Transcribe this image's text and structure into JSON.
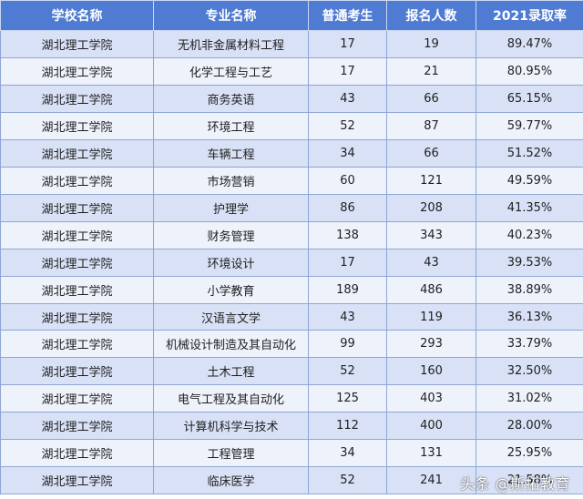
{
  "table": {
    "headers": [
      "学校名称",
      "专业名称",
      "普通考生",
      "报名人数",
      "2021录取率"
    ],
    "rows": [
      [
        "湖北理工学院",
        "无机非金属材料工程",
        "17",
        "19",
        "89.47%"
      ],
      [
        "湖北理工学院",
        "化学工程与工艺",
        "17",
        "21",
        "80.95%"
      ],
      [
        "湖北理工学院",
        "商务英语",
        "43",
        "66",
        "65.15%"
      ],
      [
        "湖北理工学院",
        "环境工程",
        "52",
        "87",
        "59.77%"
      ],
      [
        "湖北理工学院",
        "车辆工程",
        "34",
        "66",
        "51.52%"
      ],
      [
        "湖北理工学院",
        "市场营销",
        "60",
        "121",
        "49.59%"
      ],
      [
        "湖北理工学院",
        "护理学",
        "86",
        "208",
        "41.35%"
      ],
      [
        "湖北理工学院",
        "财务管理",
        "138",
        "343",
        "40.23%"
      ],
      [
        "湖北理工学院",
        "环境设计",
        "17",
        "43",
        "39.53%"
      ],
      [
        "湖北理工学院",
        "小学教育",
        "189",
        "486",
        "38.89%"
      ],
      [
        "湖北理工学院",
        "汉语言文学",
        "43",
        "119",
        "36.13%"
      ],
      [
        "湖北理工学院",
        "机械设计制造及其自动化",
        "99",
        "293",
        "33.79%"
      ],
      [
        "湖北理工学院",
        "土木工程",
        "52",
        "160",
        "32.50%"
      ],
      [
        "湖北理工学院",
        "电气工程及其自动化",
        "125",
        "403",
        "31.02%"
      ],
      [
        "湖北理工学院",
        "计算机科学与技术",
        "112",
        "400",
        "28.00%"
      ],
      [
        "湖北理工学院",
        "工程管理",
        "34",
        "131",
        "25.95%"
      ],
      [
        "湖北理工学院",
        "临床医学",
        "52",
        "241",
        "21.58%"
      ]
    ]
  },
  "watermark": "头条 @斯拓教育",
  "colors": {
    "header_bg": "#4f7bd2",
    "row_odd": "#d8e1f6",
    "row_even": "#eef2fb",
    "border": "#8ea6d6"
  }
}
